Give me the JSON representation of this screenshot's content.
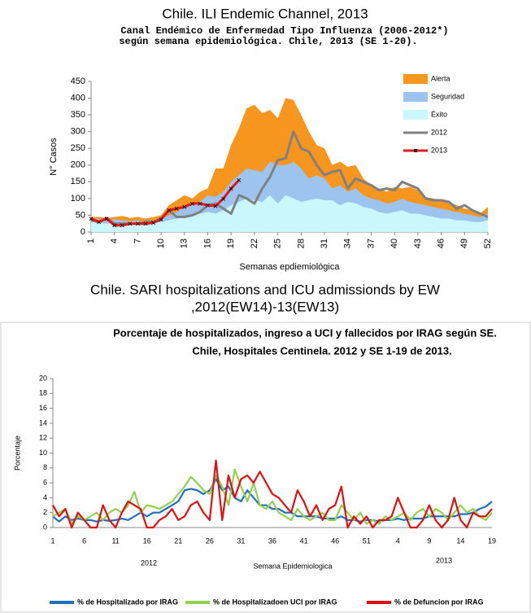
{
  "chart_data": [
    {
      "type": "line",
      "caption": [
        "Chile. ILI Endemic Channel, 2013"
      ],
      "title": "Canal  Endémico de Enfermedad Tipo Influenza (2006-2012*)",
      "subtitle": "según semana epidemiológica. Chile,  2013  (SE 1-20).",
      "y_label": "N° Casos",
      "x_label": "Semanas epdiemiológica",
      "x": [
        1,
        2,
        3,
        4,
        5,
        6,
        7,
        8,
        9,
        10,
        11,
        12,
        13,
        14,
        15,
        16,
        17,
        18,
        19,
        20,
        21,
        22,
        23,
        24,
        25,
        26,
        27,
        28,
        29,
        30,
        31,
        32,
        33,
        34,
        35,
        36,
        37,
        38,
        39,
        40,
        41,
        42,
        43,
        44,
        45,
        46,
        47,
        48,
        49,
        50,
        51,
        52
      ],
      "xlim": [
        1,
        52
      ],
      "xticks": [
        1,
        4,
        7,
        10,
        13,
        16,
        19,
        22,
        25,
        28,
        31,
        34,
        37,
        40,
        43,
        46,
        49,
        52
      ],
      "ylim": [
        0,
        450
      ],
      "yticks": [
        0,
        50,
        100,
        150,
        200,
        250,
        300,
        350,
        400,
        450
      ],
      "legend": "upper right",
      "series": [
        {
          "name": "Alerta",
          "color": "#f7961e",
          "style": "area",
          "values": [
            45,
            45,
            42,
            45,
            48,
            42,
            45,
            40,
            45,
            50,
            80,
            95,
            110,
            100,
            120,
            130,
            190,
            190,
            260,
            310,
            370,
            380,
            355,
            365,
            340,
            400,
            395,
            350,
            300,
            260,
            250,
            200,
            210,
            195,
            200,
            160,
            140,
            130,
            120,
            135,
            130,
            135,
            125,
            105,
            100,
            95,
            90,
            80,
            70,
            65,
            55,
            75
          ]
        },
        {
          "name": "Seguridad",
          "color": "#9dc3ef",
          "style": "area",
          "values": [
            40,
            38,
            35,
            38,
            35,
            32,
            35,
            30,
            35,
            40,
            50,
            60,
            75,
            80,
            90,
            110,
            105,
            120,
            150,
            170,
            190,
            185,
            180,
            210,
            200,
            200,
            210,
            190,
            160,
            170,
            160,
            130,
            140,
            120,
            130,
            110,
            100,
            95,
            85,
            90,
            100,
            90,
            85,
            80,
            75,
            70,
            65,
            60,
            55,
            50,
            45,
            55
          ]
        },
        {
          "name": "Éxito",
          "color": "#c9f7fb",
          "style": "area",
          "values": [
            30,
            28,
            25,
            28,
            25,
            22,
            25,
            20,
            25,
            30,
            35,
            40,
            45,
            50,
            55,
            60,
            55,
            65,
            80,
            90,
            100,
            95,
            90,
            110,
            85,
            110,
            100,
            90,
            95,
            100,
            95,
            95,
            80,
            90,
            85,
            75,
            70,
            60,
            55,
            60,
            65,
            55,
            55,
            50,
            45,
            40,
            40,
            35,
            35,
            30,
            30,
            35
          ]
        },
        {
          "name": "2012",
          "color": "#808080",
          "style": "line",
          "values": [
            35,
            30,
            42,
            25,
            25,
            25,
            25,
            30,
            30,
            40,
            65,
            45,
            45,
            50,
            60,
            80,
            85,
            70,
            55,
            110,
            100,
            85,
            130,
            165,
            215,
            220,
            300,
            250,
            240,
            200,
            170,
            180,
            185,
            130,
            160,
            150,
            140,
            125,
            130,
            125,
            150,
            140,
            130,
            100,
            95,
            95,
            90,
            70,
            80,
            65,
            55,
            45
          ]
        },
        {
          "name": "2013",
          "color": "#e8141c",
          "style": "line",
          "markers": true,
          "values": [
            40,
            30,
            40,
            20,
            20,
            25,
            25,
            25,
            28,
            38,
            65,
            70,
            75,
            85,
            85,
            80,
            78,
            100,
            130,
            155,
            null,
            null,
            null,
            null,
            null,
            null,
            null,
            null,
            null,
            null,
            null,
            null,
            null,
            null,
            null,
            null,
            null,
            null,
            null,
            null,
            null,
            null,
            null,
            null,
            null,
            null,
            null,
            null,
            null,
            null,
            null,
            null
          ]
        }
      ]
    },
    {
      "type": "line",
      "caption": [
        "Chile. SARI hospitalizations and ICU admissionds by EW",
        ",2012(EW14)-13(EW13)"
      ],
      "title": "Porcentaje de hospitalizados, ingreso a UCI y fallecidos por IRAG según SE.",
      "subtitle": "Chile, Hospitales Centinela. 2012 y SE 1-19 de 2013.",
      "y_label": "Porcentaje",
      "x_label": "Semana Epidemiologica",
      "year_labels": [
        "2012",
        "2013"
      ],
      "categories": [
        "1",
        null,
        null,
        null,
        null,
        "6",
        null,
        null,
        null,
        null,
        "11",
        null,
        null,
        null,
        null,
        "16",
        null,
        null,
        null,
        null,
        "21",
        null,
        null,
        null,
        null,
        "26",
        null,
        null,
        null,
        null,
        "31",
        null,
        null,
        null,
        null,
        "36",
        null,
        null,
        null,
        null,
        "41",
        null,
        null,
        null,
        null,
        "46",
        null,
        null,
        null,
        null,
        "51",
        null,
        null,
        null,
        null,
        "4",
        null,
        null,
        null,
        null,
        "9",
        null,
        null,
        null,
        null,
        "14",
        null,
        null,
        null,
        null,
        "19"
      ],
      "ylim": [
        0,
        20
      ],
      "yticks": [
        0,
        2,
        4,
        6,
        8,
        10,
        12,
        14,
        16,
        18,
        20
      ],
      "legend": "bottom",
      "series": [
        {
          "name": "% de Hospitalizado por IRAG",
          "color": "#1f6fbf",
          "style": "line",
          "values": [
            1.5,
            0.8,
            1.5,
            1.0,
            1.2,
            1.0,
            1.0,
            0.8,
            1.0,
            0.9,
            1.0,
            1.2,
            1.0,
            1.5,
            2.0,
            1.5,
            2.0,
            2.0,
            2.5,
            3.0,
            3.5,
            5.0,
            5.2,
            5.0,
            4.5,
            5.0,
            6.5,
            5.0,
            5.5,
            4.0,
            3.5,
            5.0,
            4.0,
            3.0,
            3.0,
            2.5,
            2.5,
            2.0,
            2.0,
            1.5,
            1.5,
            1.5,
            1.5,
            1.2,
            1.2,
            1.2,
            1.5,
            1.0,
            1.0,
            0.8,
            1.0,
            1.0,
            0.8,
            1.0,
            1.0,
            1.2,
            1.0,
            1.2,
            1.2,
            1.2,
            1.5,
            1.5,
            1.5,
            1.5,
            1.5,
            1.8,
            1.8,
            2.0,
            2.5,
            2.8,
            3.5
          ]
        },
        {
          "name": "% de Hospitalizadoen UCI por IRAG",
          "color": "#92d050",
          "style": "line",
          "values": [
            1.5,
            2.0,
            2.5,
            0.5,
            1.5,
            1.0,
            1.5,
            2.0,
            1.0,
            2.0,
            2.5,
            2.0,
            3.0,
            4.8,
            2.0,
            3.0,
            2.8,
            2.5,
            3.0,
            3.5,
            4.5,
            5.5,
            6.8,
            6.0,
            5.0,
            4.5,
            7.0,
            5.5,
            3.0,
            7.8,
            5.5,
            3.5,
            6.0,
            3.0,
            2.5,
            3.5,
            2.0,
            1.5,
            1.0,
            2.5,
            1.5,
            1.0,
            1.5,
            2.0,
            1.0,
            1.0,
            3.0,
            2.0,
            1.0,
            2.0,
            0.5,
            1.0,
            0.5,
            1.5,
            1.0,
            1.5,
            2.0,
            1.0,
            2.0,
            2.5,
            1.5,
            2.5,
            2.0,
            1.0,
            2.0,
            3.0,
            2.0,
            2.5,
            1.5,
            1.0,
            2.0
          ]
        },
        {
          "name": "% de Defuncion por IRAG",
          "color": "#e01010",
          "style": "line",
          "values": [
            3.0,
            1.5,
            2.5,
            0.0,
            2.0,
            1.0,
            0.0,
            0.0,
            3.0,
            1.0,
            0.0,
            2.0,
            3.5,
            3.0,
            2.5,
            0.0,
            0.0,
            1.0,
            1.5,
            2.5,
            1.0,
            1.5,
            3.0,
            3.5,
            2.0,
            1.0,
            9.0,
            1.0,
            7.0,
            4.0,
            6.5,
            7.0,
            6.0,
            7.5,
            6.0,
            4.5,
            4.0,
            3.0,
            2.0,
            5.0,
            3.5,
            1.5,
            3.0,
            1.0,
            2.5,
            3.0,
            5.5,
            0.0,
            1.5,
            0.5,
            1.5,
            0.0,
            1.0,
            1.0,
            1.5,
            4.0,
            2.0,
            0.0,
            0.0,
            1.0,
            3.0,
            1.0,
            0.0,
            1.0,
            4.0,
            1.0,
            0.0,
            2.0,
            1.5,
            1.5,
            2.5
          ]
        }
      ]
    }
  ]
}
